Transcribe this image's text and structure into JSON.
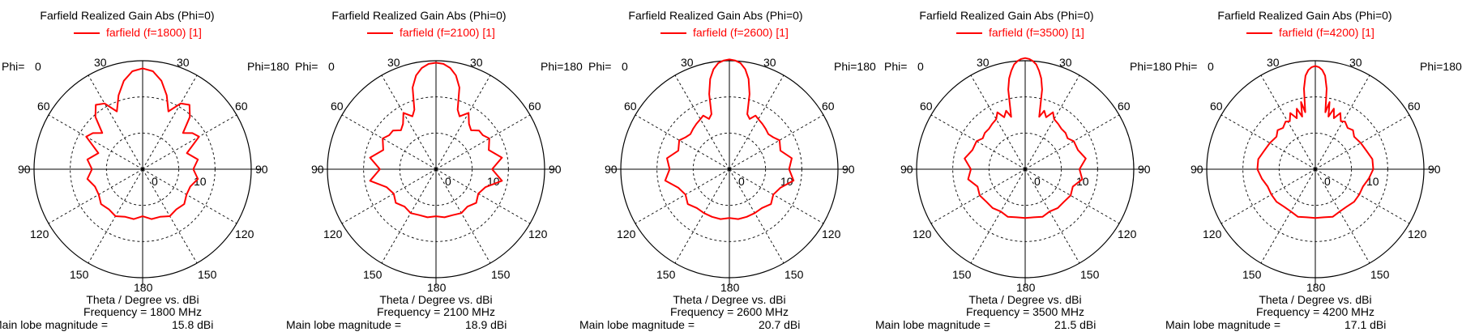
{
  "colors": {
    "trace": "#ff0000",
    "axes": "#000000",
    "background": "#ffffff"
  },
  "phi_left_label": "Phi=",
  "phi_left_value": "0",
  "phi_right_label": "Phi=180",
  "xlabel": "Theta / Degree vs. dBi",
  "radial_tick_labels": [
    "0",
    "10"
  ],
  "angle_labels": {
    "top": "0",
    "upper_left_30": "30",
    "upper_right_30": "30",
    "left_60": "60",
    "right_60": "60",
    "left_90": "90",
    "right_90": "90",
    "left_120": "120",
    "right_120": "120",
    "left_150": "150",
    "right_150": "150",
    "bottom": "180"
  },
  "chart_data": [
    {
      "type": "polar",
      "title": "Farfield Realized Gain Abs (Phi=0)",
      "legend": "farfield (f=1800) [1]",
      "frequency_text": "Frequency = 1800 MHz",
      "magnitude_label": "Main lobe magnitude =",
      "magnitude_value": "15.8 dBi",
      "radial_range_dBi": [
        -40,
        20
      ],
      "grid": true,
      "series": [
        {
          "theta_deg": [
            0,
            6,
            12,
            18,
            24,
            30,
            36,
            42,
            48,
            54,
            60,
            70,
            80,
            90,
            100,
            110,
            120,
            130,
            140,
            150,
            160,
            170,
            180
          ],
          "gain_dBi": [
            15.8,
            14.5,
            10,
            3,
            -5,
            2,
            4,
            -1,
            -10,
            -6,
            -4,
            -14,
            -9,
            -12,
            -9,
            -12,
            -12,
            -10,
            -11,
            -10,
            -12,
            -12,
            -14
          ]
        }
      ]
    },
    {
      "type": "polar",
      "title": "Farfield Realized Gain Abs (Phi=0)",
      "legend": "farfield (f=2100) [1]",
      "frequency_text": "Frequency = 2100 MHz",
      "magnitude_label": "Main lobe magnitude =",
      "magnitude_value": "18.9 dBi",
      "radial_range_dBi": [
        -40,
        20
      ],
      "grid": true,
      "series": [
        {
          "theta_deg": [
            0,
            4,
            8,
            12,
            16,
            20,
            24,
            30,
            36,
            42,
            48,
            54,
            60,
            70,
            80,
            90,
            100,
            110,
            120,
            130,
            140,
            150,
            160,
            170,
            180
          ],
          "gain_dBi": [
            18.9,
            18.4,
            16.5,
            13,
            7,
            -5,
            -8,
            -4,
            -9,
            -11,
            -8,
            -8,
            -6,
            -9,
            -3,
            -9,
            -3,
            -11,
            -13,
            -11,
            -13,
            -12,
            -13,
            -13,
            -14
          ]
        }
      ]
    },
    {
      "type": "polar",
      "title": "Farfield Realized Gain Abs (Phi=0)",
      "legend": "farfield (f=2600) [1]",
      "frequency_text": "Frequency = 2600 MHz",
      "magnitude_label": "Main lobe magnitude =",
      "magnitude_value": "20.7 dBi",
      "radial_range_dBi": [
        -40,
        20
      ],
      "grid": true,
      "series": [
        {
          "theta_deg": [
            0,
            3,
            6,
            9,
            12,
            15,
            18,
            22,
            26,
            30,
            36,
            42,
            48,
            54,
            60,
            70,
            80,
            90,
            100,
            110,
            120,
            130,
            140,
            150,
            160,
            170,
            180
          ],
          "gain_dBi": [
            20.7,
            20.2,
            19,
            16,
            11,
            3,
            -8,
            -10,
            -7,
            -8,
            -9,
            -10,
            -11,
            -10,
            -8,
            -10,
            -5,
            -7,
            -4,
            -10,
            -12,
            -10,
            -12,
            -12,
            -12,
            -12,
            -13
          ]
        }
      ]
    },
    {
      "type": "polar",
      "title": "Farfield Realized Gain Abs (Phi=0)",
      "legend": "farfield (f=3500) [1]",
      "frequency_text": "Frequency = 3500 MHz",
      "magnitude_label": "Main lobe magnitude =",
      "magnitude_value": "21.5 dBi",
      "radial_range_dBi": [
        -40,
        20
      ],
      "grid": true,
      "series": [
        {
          "theta_deg": [
            0,
            2,
            4,
            6,
            8,
            10,
            12,
            15,
            18,
            22,
            26,
            30,
            36,
            42,
            48,
            54,
            60,
            70,
            80,
            90,
            100,
            110,
            120,
            130,
            140,
            150,
            160,
            170,
            180
          ],
          "gain_dBi": [
            21.5,
            21,
            20,
            18.3,
            15,
            11,
            5,
            -10,
            -6,
            -9,
            -5,
            -8,
            -9,
            -10,
            -10,
            -11,
            -9,
            -9,
            -6,
            -10,
            -8,
            -12,
            -11,
            -12,
            -12,
            -13,
            -12,
            -13,
            -13
          ]
        }
      ]
    },
    {
      "type": "polar",
      "title": "Farfield Realized Gain Abs (Phi=0)",
      "legend": "farfield (f=4200) [1]",
      "frequency_text": "Frequency = 4200 MHz",
      "magnitude_label": "Main lobe magnitude =",
      "magnitude_value": "17.1 dBi",
      "radial_range_dBi": [
        -40,
        20
      ],
      "grid": true,
      "series": [
        {
          "theta_deg": [
            0,
            2,
            4,
            6,
            8,
            10,
            12,
            14,
            17,
            20,
            24,
            28,
            32,
            38,
            44,
            50,
            60,
            70,
            80,
            90,
            100,
            110,
            120,
            130,
            140,
            150,
            160,
            170,
            180
          ],
          "gain_dBi": [
            17.1,
            16.5,
            15,
            12,
            5,
            -8,
            -2,
            -10,
            -5,
            -10,
            -6,
            -10,
            -9,
            -11,
            -10,
            -12,
            -11,
            -10,
            -8,
            -8,
            -10,
            -12,
            -12,
            -12,
            -13,
            -13,
            -12,
            -13,
            -13
          ]
        }
      ]
    }
  ]
}
